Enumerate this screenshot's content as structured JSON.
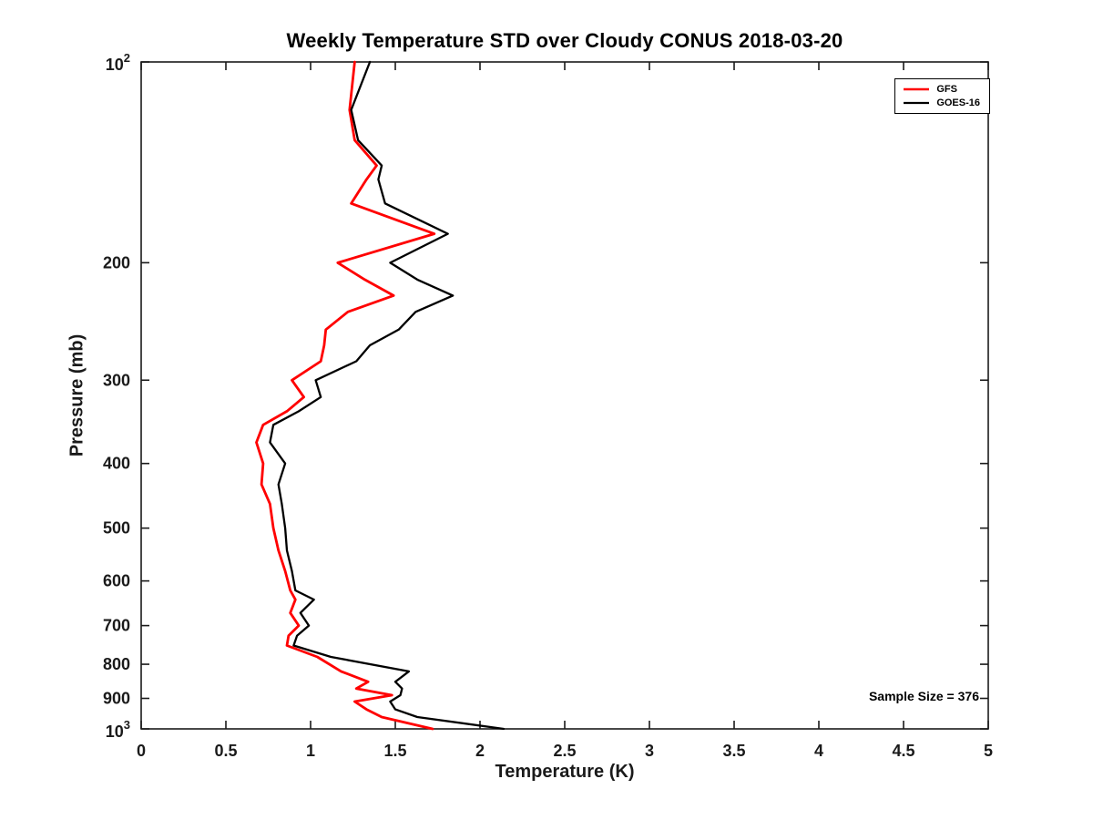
{
  "chart_data": {
    "type": "line",
    "title": "Weekly Temperature STD over Cloudy CONUS 2018-03-20",
    "xlabel": "Temperature (K)",
    "ylabel": "Pressure (mb)",
    "annotation": "Sample Size = 376",
    "xlim": [
      0,
      5
    ],
    "ylim": [
      100,
      1000
    ],
    "yscale": "log",
    "y_inverted": true,
    "grid": false,
    "legend_position": "top-right",
    "axis_color": "#1a1a1a",
    "xticks": [
      {
        "value": 0,
        "label": "0"
      },
      {
        "value": 0.5,
        "label": "0.5"
      },
      {
        "value": 1,
        "label": "1"
      },
      {
        "value": 1.5,
        "label": "1.5"
      },
      {
        "value": 2,
        "label": "2"
      },
      {
        "value": 2.5,
        "label": "2.5"
      },
      {
        "value": 3,
        "label": "3"
      },
      {
        "value": 3.5,
        "label": "3.5"
      },
      {
        "value": 4,
        "label": "4"
      },
      {
        "value": 4.5,
        "label": "4.5"
      },
      {
        "value": 5,
        "label": "5"
      }
    ],
    "yticks": [
      {
        "value": 100,
        "label": "10^2"
      },
      {
        "value": 200,
        "label": "200"
      },
      {
        "value": 300,
        "label": "300"
      },
      {
        "value": 400,
        "label": "400"
      },
      {
        "value": 500,
        "label": "500"
      },
      {
        "value": 600,
        "label": "600"
      },
      {
        "value": 700,
        "label": "700"
      },
      {
        "value": 800,
        "label": "800"
      },
      {
        "value": 900,
        "label": "900"
      },
      {
        "value": 1000,
        "label": "10^3"
      }
    ],
    "pressure_mb": [
      100,
      118,
      131,
      143,
      150,
      163,
      181,
      200,
      212,
      224,
      237,
      252,
      266,
      281,
      300,
      318,
      334,
      350,
      372,
      400,
      430,
      460,
      500,
      540,
      580,
      620,
      640,
      670,
      700,
      725,
      750,
      780,
      820,
      850,
      870,
      890,
      910,
      935,
      960,
      1000
    ],
    "series": [
      {
        "name": "GFS",
        "color": "#ff0000",
        "values": [
          1.26,
          1.23,
          1.26,
          1.39,
          1.33,
          1.24,
          1.73,
          1.16,
          1.32,
          1.49,
          1.22,
          1.09,
          1.08,
          1.06,
          0.89,
          0.96,
          0.86,
          0.72,
          0.68,
          0.72,
          0.71,
          0.76,
          0.78,
          0.81,
          0.85,
          0.88,
          0.91,
          0.88,
          0.93,
          0.87,
          0.86,
          1.04,
          1.18,
          1.34,
          1.27,
          1.48,
          1.26,
          1.33,
          1.42,
          1.72
        ]
      },
      {
        "name": "GOES-16",
        "color": "#000000",
        "values": [
          1.35,
          1.24,
          1.28,
          1.42,
          1.4,
          1.44,
          1.81,
          1.47,
          1.63,
          1.84,
          1.62,
          1.52,
          1.35,
          1.27,
          1.03,
          1.06,
          0.93,
          0.78,
          0.76,
          0.85,
          0.81,
          0.83,
          0.85,
          0.86,
          0.89,
          0.91,
          1.02,
          0.94,
          0.99,
          0.92,
          0.9,
          1.12,
          1.58,
          1.5,
          1.54,
          1.53,
          1.47,
          1.5,
          1.63,
          2.14
        ]
      }
    ]
  }
}
